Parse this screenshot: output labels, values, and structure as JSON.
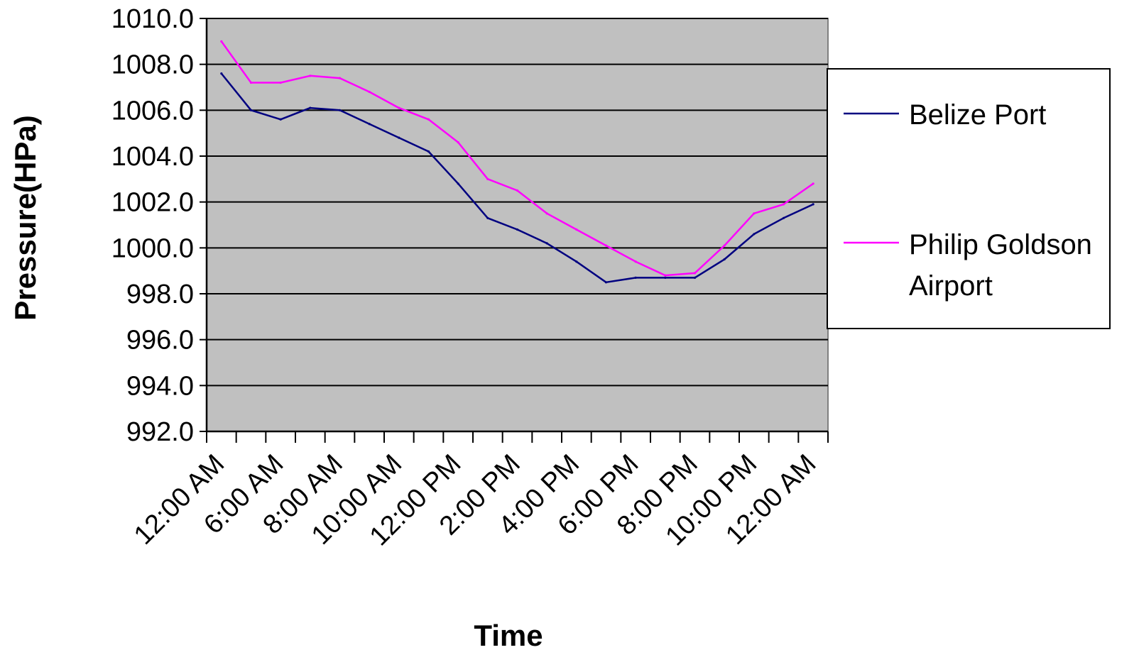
{
  "chart_data": {
    "type": "line",
    "title": "",
    "xlabel": "Time",
    "ylabel": "Pressure(HPa)",
    "ylim": [
      992.0,
      1010.0
    ],
    "yticks": [
      "992.0",
      "994.0",
      "996.0",
      "998.0",
      "1000.0",
      "1002.0",
      "1004.0",
      "1006.0",
      "1008.0",
      "1010.0"
    ],
    "x_tick_labels": [
      "12:00 AM",
      "6:00 AM",
      "8:00 AM",
      "10:00 AM",
      "12:00 PM",
      "2:00 PM",
      "4:00 PM",
      "6:00 PM",
      "8:00 PM",
      "10:00 PM",
      "12:00 AM"
    ],
    "grid": true,
    "legend_position": "right",
    "series": [
      {
        "name": "Belize Port",
        "color": "#000080",
        "values": [
          1007.6,
          1006.0,
          1005.6,
          1006.1,
          1006.0,
          1005.4,
          1004.8,
          1004.2,
          1002.8,
          1001.3,
          1000.8,
          1000.2,
          999.4,
          998.5,
          998.7,
          998.7,
          998.7,
          999.5,
          1000.6,
          1001.3,
          1001.9
        ]
      },
      {
        "name": "Philip Goldson Airport",
        "color": "#ff00ff",
        "values": [
          1009.0,
          1007.2,
          1007.2,
          1007.5,
          1007.4,
          1006.8,
          1006.1,
          1005.6,
          1004.6,
          1003.0,
          1002.5,
          1001.5,
          1000.8,
          1000.1,
          999.4,
          998.8,
          998.9,
          1000.1,
          1001.5,
          1001.9,
          1002.8
        ]
      }
    ],
    "legend": {
      "belize_port": "Belize Port",
      "airport_line1": "Philip Goldson",
      "airport_line2": "Airport"
    }
  }
}
